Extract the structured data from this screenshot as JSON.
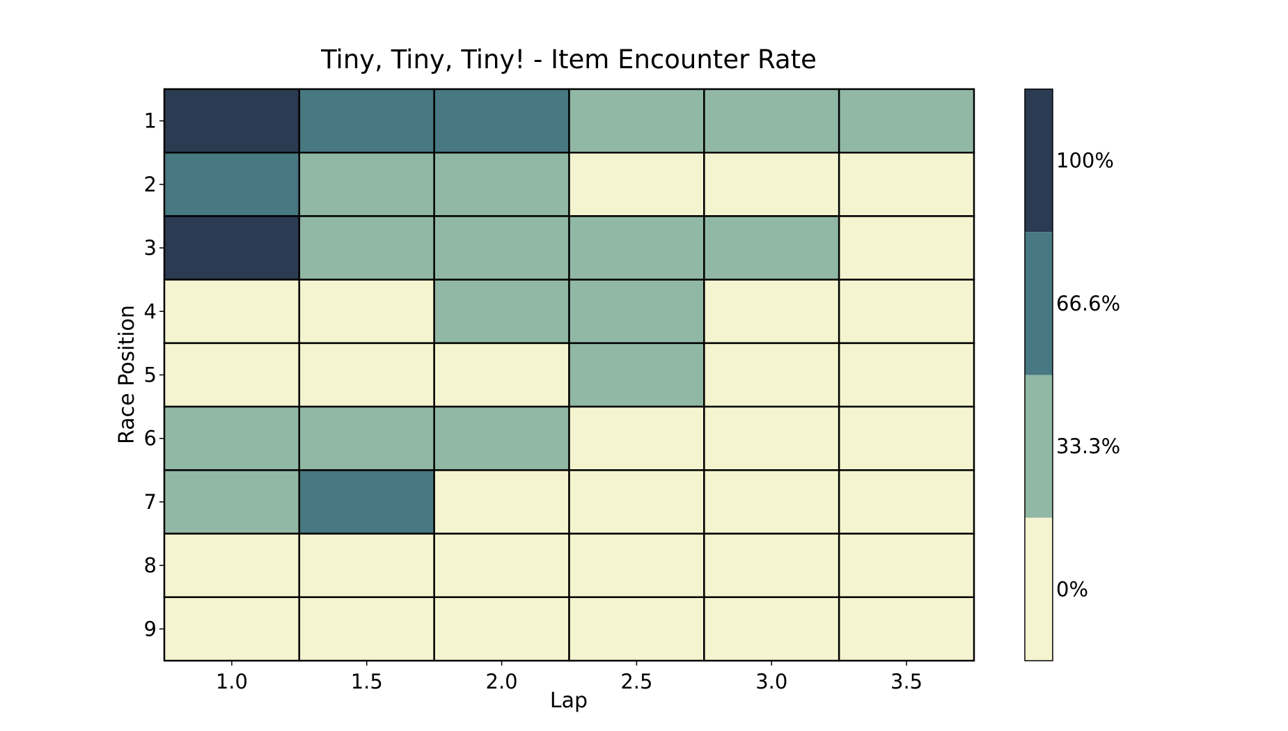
{
  "chart_data": {
    "type": "heatmap",
    "title": "Tiny, Tiny, Tiny! - Item Encounter Rate",
    "xlabel": "Lap",
    "ylabel": "Race Position",
    "x_categories": [
      "1.0",
      "1.5",
      "2.0",
      "2.5",
      "3.0",
      "3.5"
    ],
    "y_categories": [
      "1",
      "2",
      "3",
      "4",
      "5",
      "6",
      "7",
      "8",
      "9"
    ],
    "values": [
      [
        100,
        66.6,
        66.6,
        33.3,
        33.3,
        33.3
      ],
      [
        66.6,
        33.3,
        33.3,
        0,
        0,
        0
      ],
      [
        100,
        33.3,
        33.3,
        33.3,
        33.3,
        0
      ],
      [
        0,
        0,
        33.3,
        33.3,
        0,
        0
      ],
      [
        0,
        0,
        0,
        33.3,
        0,
        0
      ],
      [
        33.3,
        33.3,
        33.3,
        0,
        0,
        0
      ],
      [
        33.3,
        66.6,
        0,
        0,
        0,
        0
      ],
      [
        0,
        0,
        0,
        0,
        0,
        0
      ],
      [
        0,
        0,
        0,
        0,
        0,
        0
      ]
    ],
    "colorbar": {
      "levels": [
        0,
        33.3,
        66.6,
        100
      ],
      "labels": [
        "0%",
        "33.3%",
        "66.6%",
        "100%"
      ],
      "colors": [
        "#f4f4d0",
        "#91b8a5",
        "#487882",
        "#2a3b52"
      ]
    },
    "grid": false
  }
}
